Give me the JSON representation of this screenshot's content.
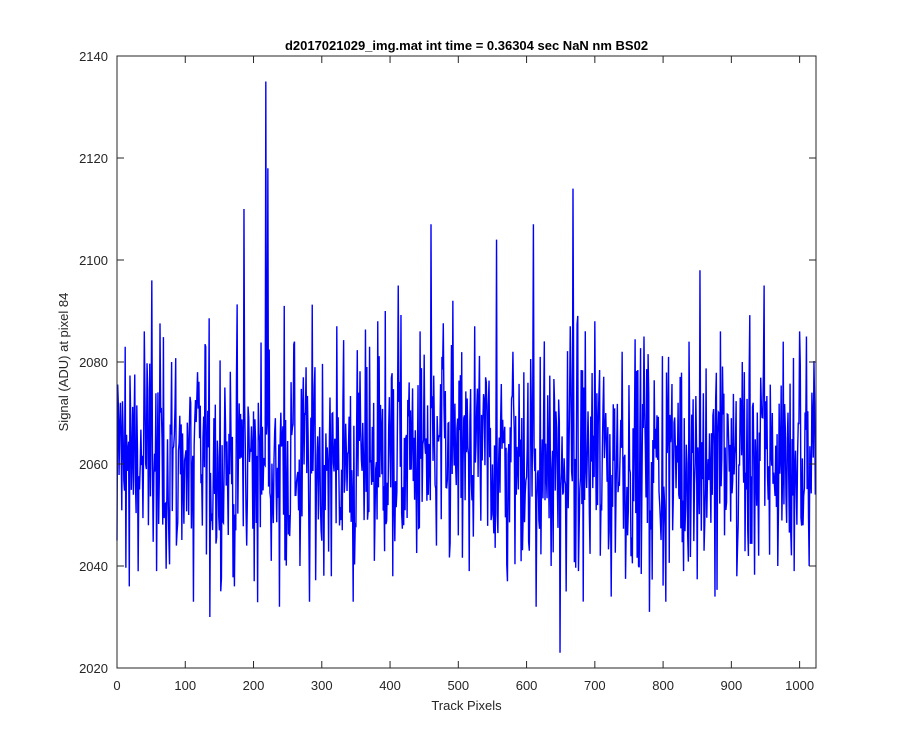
{
  "chart_data": {
    "type": "line",
    "title": "d2017021029_img.mat int time = 0.36304 sec  NaN nm BS02",
    "xlabel": "Track Pixels",
    "ylabel": "Signal (ADU) at pixel 84",
    "xlim": [
      0,
      1024
    ],
    "ylim": [
      2020,
      2140
    ],
    "xticks": [
      0,
      100,
      200,
      300,
      400,
      500,
      600,
      700,
      800,
      900,
      1000
    ],
    "yticks": [
      2020,
      2040,
      2060,
      2080,
      2100,
      2120,
      2140
    ],
    "grid": false,
    "series_color": "#0000ff",
    "noise": {
      "n": 1024,
      "baseline": 2061,
      "sigma": 11,
      "min": 2023,
      "max": 2135
    },
    "series": [
      {
        "x": [
          0,
          5,
          12,
          18,
          25,
          33,
          40,
          46,
          51,
          58,
          65,
          73,
          80,
          87,
          96,
          105,
          112,
          118,
          124,
          130,
          136,
          142,
          150,
          158,
          165,
          172,
          180,
          186,
          190,
          195,
          201,
          207,
          212,
          216,
          218,
          221,
          226,
          232,
          238,
          245,
          252,
          260,
          268,
          275,
          282,
          290,
          298,
          306,
          314,
          322,
          330,
          338,
          346,
          354,
          362,
          370,
          377,
          382,
          388,
          393,
          398,
          404,
          412,
          420,
          428,
          436,
          444,
          452,
          460,
          468,
          476,
          484,
          492,
          500,
          508,
          516,
          524,
          532,
          540,
          548,
          556,
          564,
          572,
          580,
          588,
          596,
          604,
          610,
          614,
          620,
          628,
          636,
          644,
          649,
          653,
          658,
          664,
          668,
          671,
          676,
          684,
          692,
          700,
          708,
          716,
          724,
          732,
          740,
          748,
          756,
          764,
          772,
          780,
          788,
          796,
          804,
          808,
          814,
          822,
          830,
          838,
          846,
          854,
          860,
          868,
          876,
          884,
          892,
          900,
          908,
          916,
          924,
          932,
          940,
          948,
          954,
          960,
          968,
          976,
          984,
          992,
          1000,
          1005,
          1010,
          1014,
          1018,
          1023
        ],
        "y": [
          2045,
          2072,
          2083,
          2036,
          2068,
          2055,
          2086,
          2048,
          2096,
          2039,
          2071,
          2053,
          2080,
          2044,
          2066,
          2050,
          2033,
          2078,
          2058,
          2083,
          2030,
          2069,
          2047,
          2075,
          2058,
          2036,
          2061,
          2110,
          2044,
          2063,
          2037,
          2072,
          2054,
          2060,
          2135,
          2118,
          2041,
          2069,
          2032,
          2091,
          2050,
          2084,
          2040,
          2070,
          2033,
          2079,
          2052,
          2066,
          2038,
          2087,
          2047,
          2062,
          2033,
          2074,
          2049,
          2083,
          2041,
          2088,
          2058,
          2090,
          2067,
          2038,
          2095,
          2048,
          2076,
          2053,
          2086,
          2062,
          2107,
          2044,
          2081,
          2057,
          2092,
          2046,
          2069,
          2039,
          2087,
          2060,
          2077,
          2049,
          2104,
          2063,
          2037,
          2082,
          2055,
          2078,
          2043,
          2107,
          2032,
          2081,
          2064,
          2040,
          2067,
          2023,
          2054,
          2035,
          2087,
          2114,
          2061,
          2039,
          2075,
          2050,
          2088,
          2042,
          2070,
          2034,
          2063,
          2082,
          2046,
          2067,
          2040,
          2085,
          2031,
          2063,
          2049,
          2033,
          2081,
          2047,
          2072,
          2039,
          2084,
          2056,
          2098,
          2043,
          2066,
          2034,
          2086,
          2051,
          2069,
          2038,
          2080,
          2047,
          2072,
          2042,
          2095,
          2053,
          2070,
          2040,
          2084,
          2058,
          2039,
          2086,
          2048,
          2085,
          2040,
          2074,
          2054
        ]
      }
    ]
  }
}
